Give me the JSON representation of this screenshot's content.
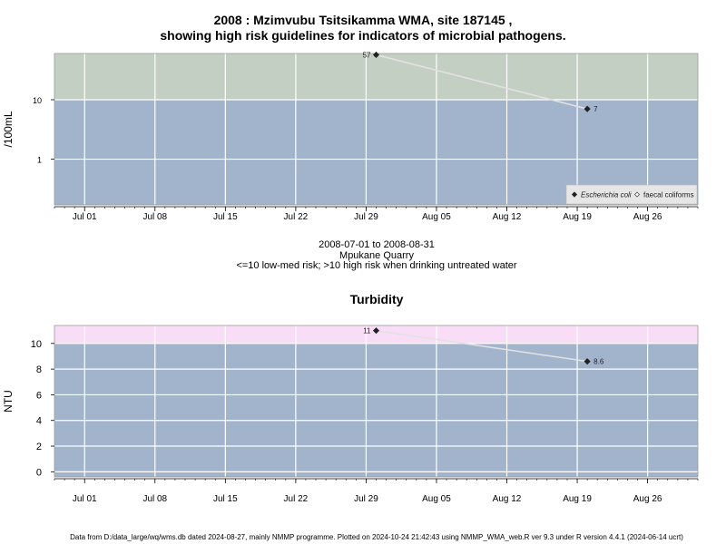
{
  "header": {
    "title_line1": "2008 : Mzimvubu Tsitsikamma WMA, site 187145 ,",
    "title_line2": "showing high risk guidelines for indicators of microbial pathogens."
  },
  "caption": {
    "date_range": "2008-07-01 to 2008-08-31",
    "site_name": "Mpukane Quarry",
    "risk_note": "<=10 low-med risk; >10 high risk when drinking untreated water"
  },
  "footer": {
    "text": "Data from D:/data_large/wq/wms.db dated 2024-08-27, mainly NMMP programme. Plotted on 2024-10-24 21:42:43 using NMMP_WMA_web.R ver 9.3 under R version 4.4.1 (2024-06-14 ucrt)"
  },
  "chart_data": [
    {
      "type": "line",
      "title": "",
      "xlabel": "",
      "ylabel": "/100mL",
      "y_scale": "log",
      "ylim": [
        0.17,
        60
      ],
      "xlim": [
        "2008-06-28",
        "2008-08-31"
      ],
      "x_ticks": [
        "Jul 01",
        "Jul 08",
        "Jul 15",
        "Jul 22",
        "Jul 29",
        "Aug 05",
        "Aug 12",
        "Aug 19",
        "Aug 26"
      ],
      "x_tick_dates": [
        "2008-07-01",
        "2008-07-08",
        "2008-07-15",
        "2008-07-22",
        "2008-07-29",
        "2008-08-05",
        "2008-08-12",
        "2008-08-19",
        "2008-08-26"
      ],
      "y_ticks": [
        1,
        10
      ],
      "y_tick_labels": [
        "1",
        "10"
      ],
      "guideline": 10,
      "band_colors": {
        "low": "#a2b4cc",
        "high": "#c4cfc3"
      },
      "grid": true,
      "legend_position": "bottom-right",
      "series": [
        {
          "name": "Escherichia coli",
          "marker": "filled-diamond",
          "color": "#222222",
          "x": [
            "2008-07-30",
            "2008-08-20"
          ],
          "values": [
            57,
            7
          ],
          "labels": [
            "57",
            "7"
          ]
        },
        {
          "name": "faecal coliforms",
          "marker": "open-diamond",
          "color": "#555555",
          "x": [],
          "values": [],
          "labels": []
        }
      ]
    },
    {
      "type": "line",
      "title": "Turbidity",
      "xlabel": "",
      "ylabel": "NTU",
      "y_scale": "linear",
      "ylim": [
        -0.4,
        11.4
      ],
      "xlim": [
        "2008-06-28",
        "2008-08-31"
      ],
      "x_ticks": [
        "Jul 01",
        "Jul 08",
        "Jul 15",
        "Jul 22",
        "Jul 29",
        "Aug 05",
        "Aug 12",
        "Aug 19",
        "Aug 26"
      ],
      "x_tick_dates": [
        "2008-07-01",
        "2008-07-08",
        "2008-07-15",
        "2008-07-22",
        "2008-07-29",
        "2008-08-05",
        "2008-08-12",
        "2008-08-19",
        "2008-08-26"
      ],
      "y_ticks": [
        0,
        2,
        4,
        6,
        8,
        10
      ],
      "y_tick_labels": [
        "0",
        "2",
        "4",
        "6",
        "8",
        "10"
      ],
      "guideline": 10,
      "band_colors": {
        "low": "#a2b4cc",
        "high": "#f9dcf6"
      },
      "grid": true,
      "series": [
        {
          "name": "Turbidity",
          "marker": "filled-diamond",
          "color": "#222222",
          "x": [
            "2008-07-30",
            "2008-08-20"
          ],
          "values": [
            11,
            8.6
          ],
          "labels": [
            "11",
            "8.6"
          ]
        }
      ]
    }
  ]
}
